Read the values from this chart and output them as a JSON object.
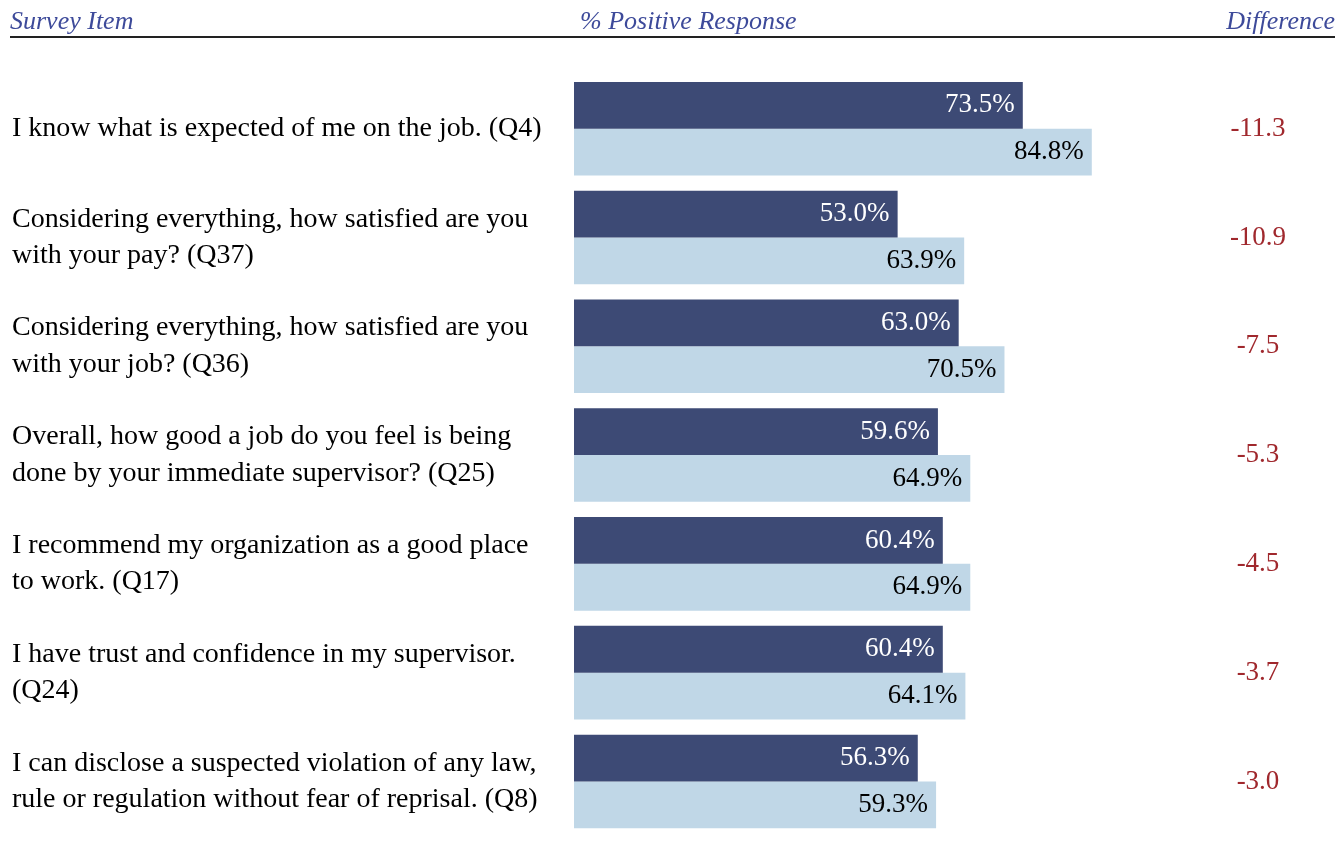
{
  "chart_data": {
    "type": "bar",
    "orientation": "horizontal",
    "ylabel": "Survey Item",
    "xlabel": "% Positive Response",
    "categories": [
      "I know what is expected of me on the job. (Q4)",
      "Considering everything, how satisfied are you with your pay? (Q37)",
      "Considering everything, how satisfied are you with your job? (Q36)",
      "Overall, how good a job do you feel is being done by your immediate supervisor? (Q25)",
      "I recommend my organization as a good place to work. (Q17)",
      "I have trust and confidence in my supervisor. (Q24)",
      "I can disclose a suspected violation of any law, rule or regulation without fear of reprisal. (Q8)"
    ],
    "series": [
      {
        "color": "#3d4a75",
        "values": [
          73.5,
          53.0,
          63.0,
          59.6,
          60.4,
          60.4,
          56.3
        ],
        "value_labels": [
          "73.5%",
          "53.0%",
          "63.0%",
          "59.6%",
          "60.4%",
          "60.4%",
          "56.3%"
        ]
      },
      {
        "color": "#c0d7e7",
        "values": [
          84.8,
          63.9,
          70.5,
          64.9,
          64.9,
          64.1,
          59.3
        ],
        "value_labels": [
          "84.8%",
          "63.9%",
          "70.5%",
          "64.9%",
          "64.9%",
          "64.1%",
          "59.3%"
        ]
      }
    ],
    "annotations": [
      "Difference",
      "-11.3",
      "-10.9",
      "-7.5",
      "-5.3",
      "-4.5",
      "-3.7",
      "-3.0"
    ],
    "legend": false,
    "grid": false,
    "tick_labels": "y"
  }
}
